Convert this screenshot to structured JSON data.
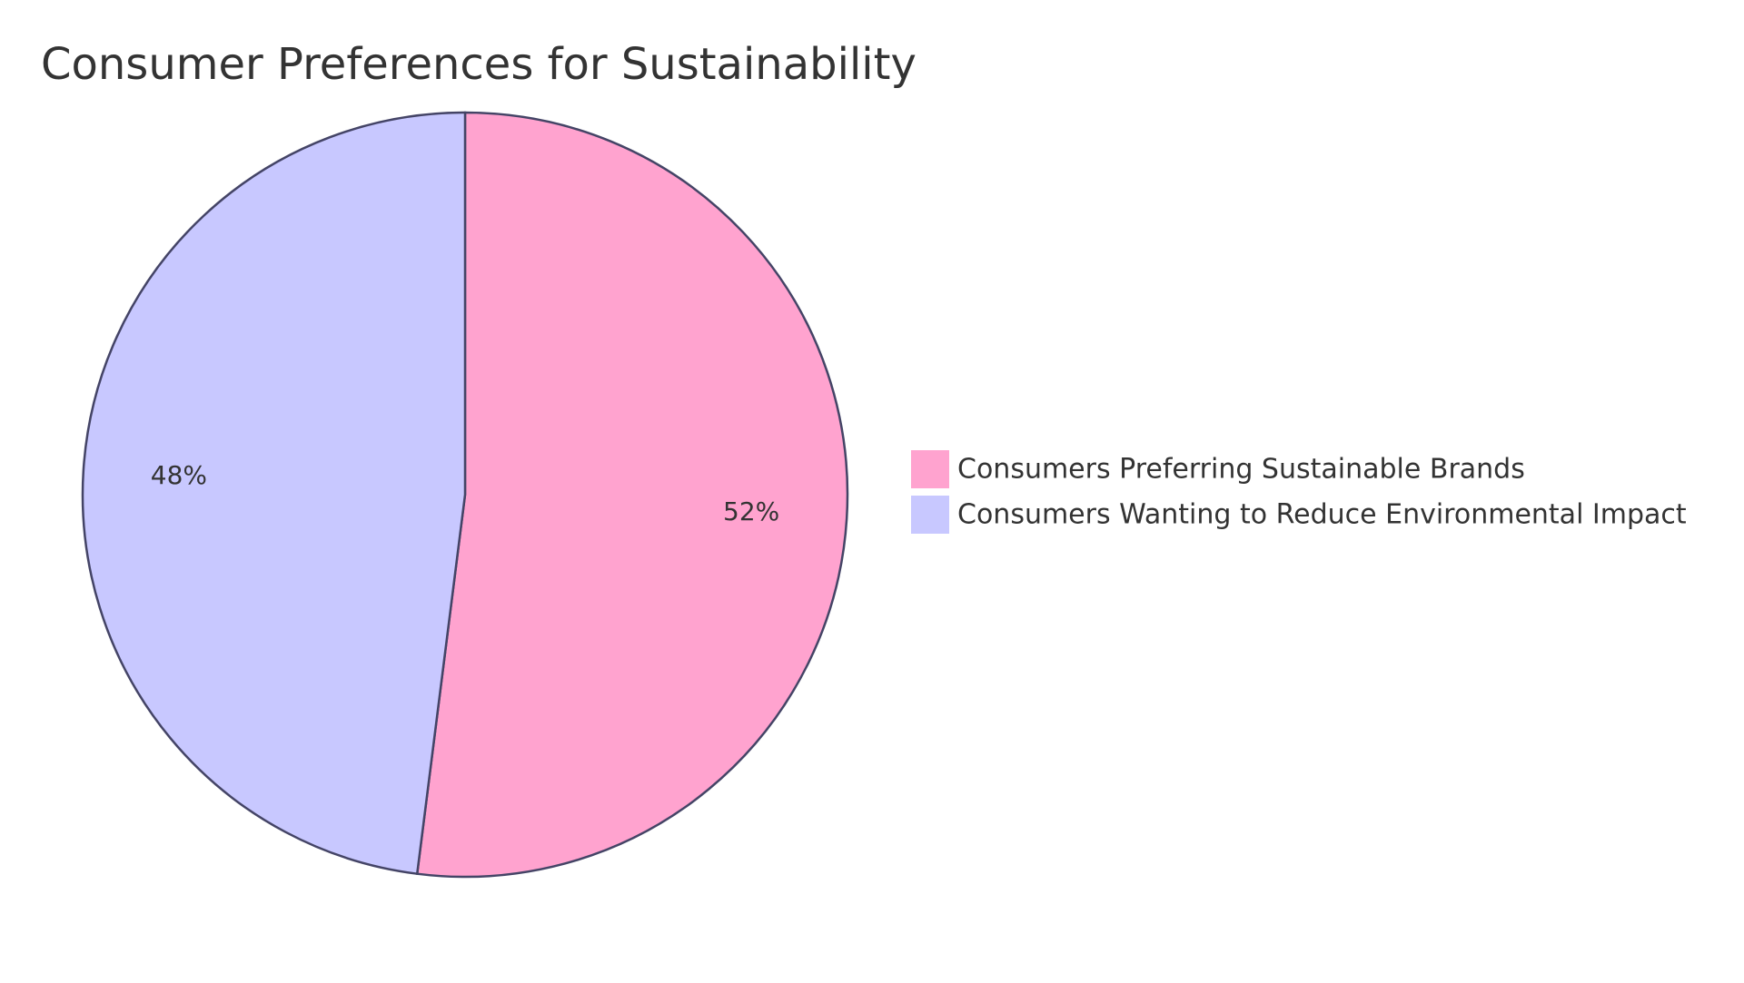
{
  "chart_data": {
    "type": "pie",
    "title": "Consumer Preferences for Sustainability",
    "categories": [
      "Consumers Preferring Sustainable Brands",
      "Consumers Wanting to Reduce Environmental Impact"
    ],
    "values": [
      52,
      48
    ],
    "value_labels": [
      "52%",
      "48%"
    ],
    "colors": [
      "#ffa3cf",
      "#c8c8ff"
    ],
    "legend": "right"
  }
}
